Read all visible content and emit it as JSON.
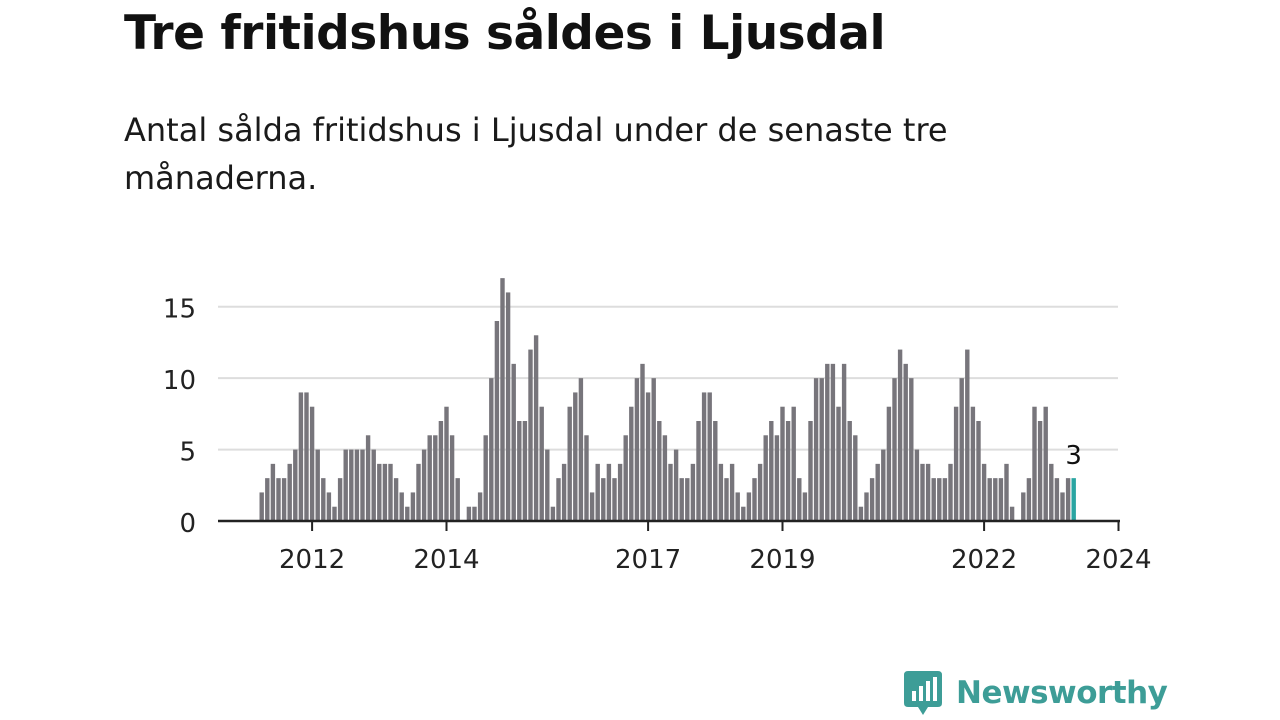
{
  "title": "Tre fritidshus såldes i Ljusdal",
  "subtitle": "Antal sålda fritidshus i Ljusdal under de senaste tre månaderna.",
  "brand": {
    "name": "Newsworthy",
    "icon": "newsworthy-logo-icon",
    "color": "#3d9d97"
  },
  "chart_data": {
    "type": "bar",
    "title": "Tre fritidshus såldes i Ljusdal",
    "subtitle": "Antal sålda fritidshus i Ljusdal under de senaste tre månaderna.",
    "xlabel": "",
    "ylabel": "",
    "ylim": [
      0,
      17.5
    ],
    "yticks": [
      0,
      5,
      10,
      15
    ],
    "grid": true,
    "bar_color": "#77757b",
    "highlight_color": "#2aa5a2",
    "annotation": {
      "label": "3",
      "target": "last"
    },
    "x_tick_labels": [
      "2012",
      "2014",
      "2017",
      "2019",
      "2022",
      "2024"
    ],
    "series": [
      {
        "values": [
          2,
          3,
          4,
          3,
          3,
          4,
          5,
          9,
          9,
          8,
          5,
          3,
          2,
          1,
          3,
          5,
          5,
          5,
          5,
          6,
          5,
          4,
          4,
          4,
          3,
          2,
          1,
          2,
          4,
          5,
          6,
          6,
          7,
          8,
          6,
          3,
          0,
          1,
          1,
          2,
          6,
          10,
          14,
          17,
          16,
          11,
          7,
          7,
          12,
          13,
          8,
          5,
          1,
          3,
          4,
          8,
          9,
          10,
          6,
          2,
          4,
          3,
          4,
          3,
          4,
          6,
          8,
          10,
          11,
          9,
          10,
          7,
          6,
          4,
          5,
          3,
          3,
          4,
          7,
          9,
          9,
          7,
          4,
          3,
          4,
          2,
          1,
          2,
          3,
          4,
          6,
          7,
          6,
          8,
          7,
          8,
          3,
          2,
          7,
          10,
          10,
          11,
          11,
          8,
          11,
          7,
          6,
          1,
          2,
          3,
          4,
          5,
          8,
          10,
          12,
          11,
          10,
          5,
          4,
          4,
          3,
          3,
          3,
          4,
          8,
          10,
          12,
          8,
          7,
          4,
          3,
          3,
          3,
          4,
          1,
          0,
          2,
          3,
          8,
          7,
          8,
          4,
          3,
          2,
          3,
          3
        ]
      }
    ]
  }
}
